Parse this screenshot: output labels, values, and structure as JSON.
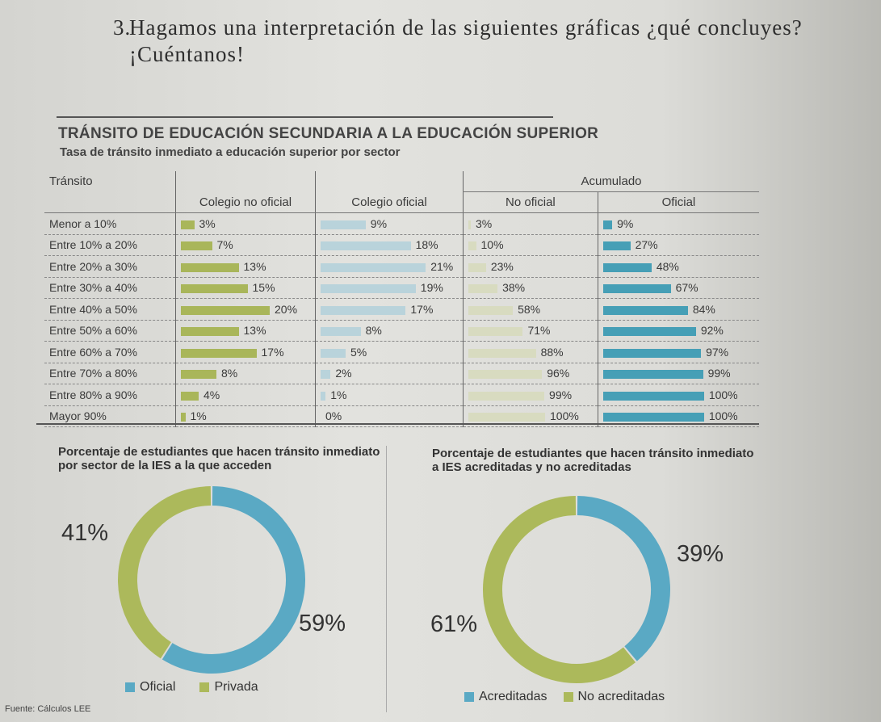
{
  "question": {
    "number": "3.",
    "text": "Hagamos una interpretación de las siguientes gráficas ¿qué concluyes? ¡Cuéntanos!"
  },
  "colors": {
    "no_oficial": "#a9b65a",
    "oficial": "#b9d3db",
    "acum_no_oficial": "#d8dbc0",
    "acum_oficial": "#469fb6",
    "donut_blue": "#5aa9c4",
    "donut_green": "#acb95b"
  },
  "chart_data": [
    {
      "type": "table",
      "title": "TRÁNSITO DE EDUCACIÓN SECUNDARIA A LA EDUCACIÓN SUPERIOR",
      "subtitle": "Tasa de tránsito inmediato a educación superior por sector",
      "group_header": "Acumulado",
      "columns": [
        "Tránsito",
        "Colegio no oficial",
        "Colegio oficial",
        "No oficial",
        "Oficial"
      ],
      "rows": [
        {
          "label": "Menor a 10%",
          "no_oficial": 3,
          "oficial": 9,
          "acum_no_oficial": 3,
          "acum_oficial": 9
        },
        {
          "label": "Entre 10% a 20%",
          "no_oficial": 7,
          "oficial": 18,
          "acum_no_oficial": 10,
          "acum_oficial": 27
        },
        {
          "label": "Entre 20% a 30%",
          "no_oficial": 13,
          "oficial": 21,
          "acum_no_oficial": 23,
          "acum_oficial": 48
        },
        {
          "label": "Entre 30% a 40%",
          "no_oficial": 15,
          "oficial": 19,
          "acum_no_oficial": 38,
          "acum_oficial": 67
        },
        {
          "label": "Entre 40% a 50%",
          "no_oficial": 20,
          "oficial": 17,
          "acum_no_oficial": 58,
          "acum_oficial": 84
        },
        {
          "label": "Entre 50% a 60%",
          "no_oficial": 13,
          "oficial": 8,
          "acum_no_oficial": 71,
          "acum_oficial": 92
        },
        {
          "label": "Entre 60% a 70%",
          "no_oficial": 17,
          "oficial": 5,
          "acum_no_oficial": 88,
          "acum_oficial": 97
        },
        {
          "label": "Entre 70% a 80%",
          "no_oficial": 8,
          "oficial": 2,
          "acum_no_oficial": 96,
          "acum_oficial": 99
        },
        {
          "label": "Entre 80% a 90%",
          "no_oficial": 4,
          "oficial": 1,
          "acum_no_oficial": 99,
          "acum_oficial": 100
        },
        {
          "label": "Mayor 90%",
          "no_oficial": 1,
          "oficial": 0,
          "acum_no_oficial": 100,
          "acum_oficial": 100
        }
      ]
    },
    {
      "type": "pie",
      "title": "Porcentaje de estudiantes que hacen tránsito inmediato por sector de la IES a la que acceden",
      "slices": [
        {
          "name": "Oficial",
          "value": 59,
          "label": "59%"
        },
        {
          "name": "Privada",
          "value": 41,
          "label": "41%"
        }
      ],
      "legend": "bottom"
    },
    {
      "type": "pie",
      "title": "Porcentaje de estudiantes que hacen tránsito inmediato a IES acreditadas y no acreditadas",
      "slices": [
        {
          "name": "Acreditadas",
          "value": 39,
          "label": "39%"
        },
        {
          "name": "No acreditadas",
          "value": 61,
          "label": "61%"
        }
      ],
      "legend": "bottom"
    }
  ],
  "source": "Fuente: Cálculos LEE"
}
